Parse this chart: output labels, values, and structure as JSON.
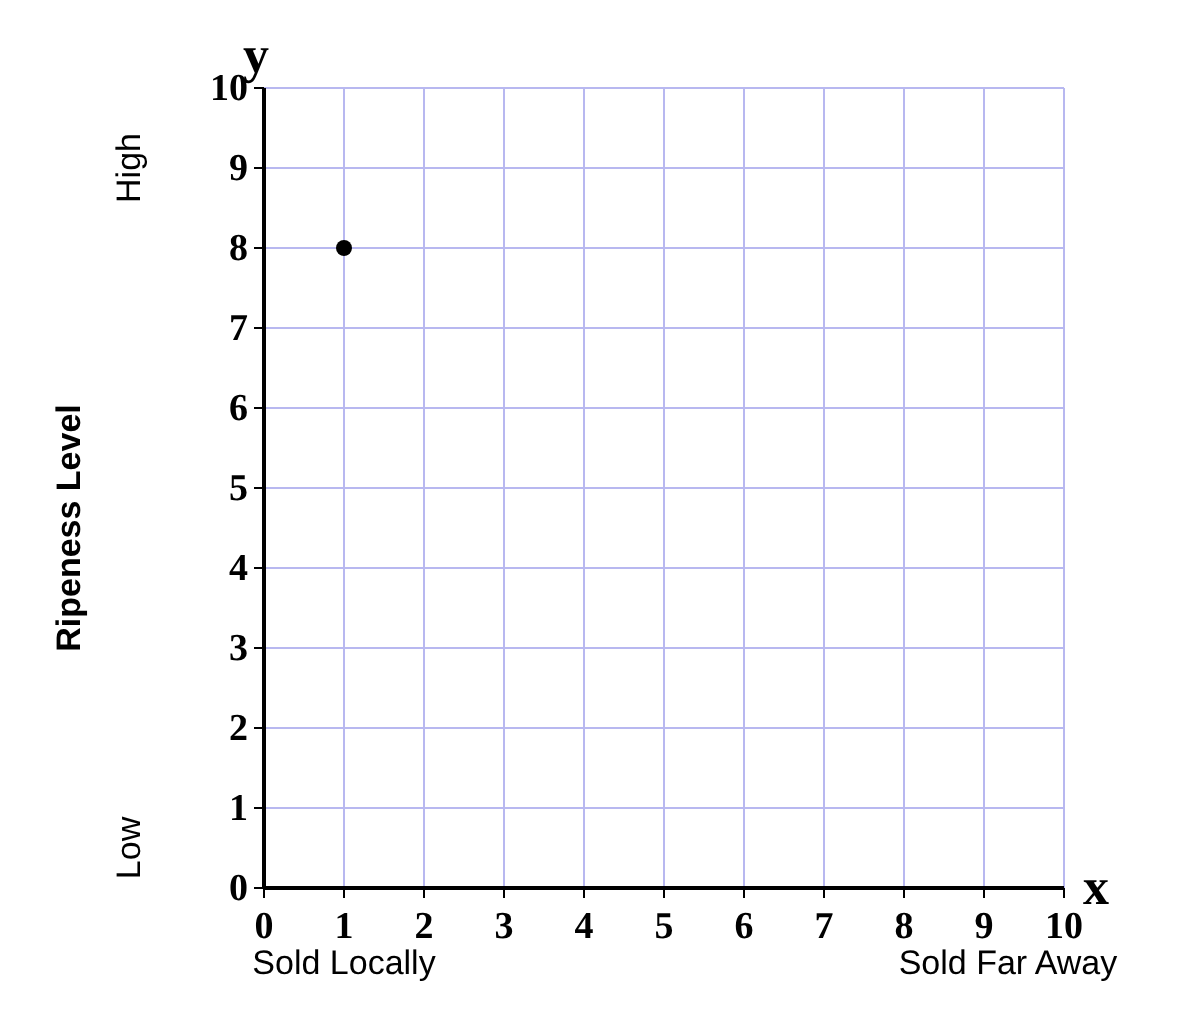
{
  "chart_data": {
    "type": "scatter",
    "xlabel": "x",
    "ylabel": "Ripeness Level",
    "x": [
      1
    ],
    "values": [
      8
    ],
    "color": "#000000",
    "marker": "circle",
    "xlim": [
      0,
      10
    ],
    "xticks": [
      0,
      1,
      2,
      3,
      4,
      5,
      6,
      7,
      8,
      9,
      10
    ],
    "ylim": [
      0,
      10
    ],
    "yticks": [
      0,
      1,
      2,
      3,
      4,
      5,
      6,
      7,
      8,
      9,
      10
    ],
    "grid": true,
    "annotations": [
      "y",
      "High",
      "Low",
      "Sold Locally",
      "Sold Far Away"
    ]
  }
}
